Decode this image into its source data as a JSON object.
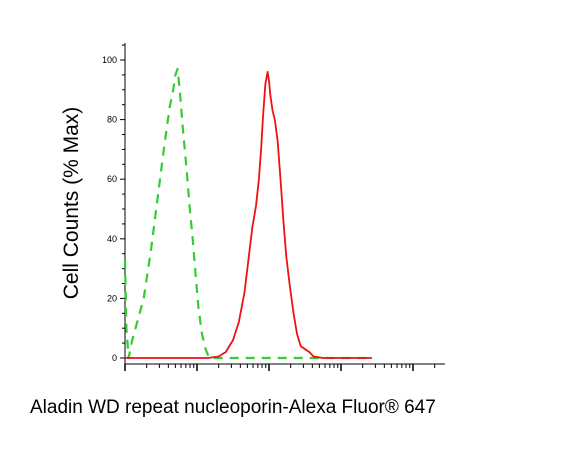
{
  "chart_data": {
    "type": "line",
    "xlabel": "Aladin WD repeat nucleoporin-Alexa Fluor® 647",
    "ylabel": "Cell Counts (% Max)",
    "ylim": [
      0,
      100
    ],
    "y_ticks": [
      "0",
      "20",
      "40",
      "60",
      "80",
      "100"
    ],
    "x_scale": "log",
    "x_tick_labels_shown": false,
    "grid": false,
    "legend": "none",
    "series": [
      {
        "color": "#33cc33",
        "style": "dashed",
        "points": [
          [
            0.0,
            33
          ],
          [
            0.02,
            10
          ],
          [
            0.05,
            0
          ],
          [
            0.1,
            6
          ],
          [
            0.17,
            12
          ],
          [
            0.26,
            20
          ],
          [
            0.36,
            36
          ],
          [
            0.46,
            55
          ],
          [
            0.55,
            72
          ],
          [
            0.62,
            84
          ],
          [
            0.67,
            90
          ],
          [
            0.7,
            95
          ],
          [
            0.73,
            97
          ],
          [
            0.76,
            90
          ],
          [
            0.8,
            78
          ],
          [
            0.86,
            62
          ],
          [
            0.9,
            50
          ],
          [
            0.94,
            40
          ],
          [
            0.98,
            28
          ],
          [
            1.02,
            17
          ],
          [
            1.07,
            8
          ],
          [
            1.12,
            3
          ],
          [
            1.17,
            0
          ],
          [
            1.4,
            0
          ],
          [
            1.9,
            0
          ],
          [
            2.4,
            0
          ],
          [
            2.9,
            0
          ],
          [
            3.43,
            0
          ]
        ]
      },
      {
        "color": "#ee1111",
        "style": "solid",
        "points": [
          [
            0.0,
            0
          ],
          [
            0.5,
            0
          ],
          [
            0.8,
            0
          ],
          [
            1.15,
            0
          ],
          [
            1.3,
            0.5
          ],
          [
            1.4,
            2
          ],
          [
            1.5,
            6
          ],
          [
            1.58,
            12
          ],
          [
            1.66,
            22
          ],
          [
            1.72,
            34
          ],
          [
            1.77,
            44
          ],
          [
            1.82,
            51
          ],
          [
            1.86,
            60
          ],
          [
            1.89,
            70
          ],
          [
            1.92,
            82
          ],
          [
            1.95,
            92
          ],
          [
            1.98,
            96
          ],
          [
            2.0,
            93
          ],
          [
            2.02,
            88
          ],
          [
            2.05,
            83
          ],
          [
            2.08,
            80
          ],
          [
            2.12,
            73
          ],
          [
            2.16,
            60
          ],
          [
            2.2,
            46
          ],
          [
            2.24,
            34
          ],
          [
            2.29,
            24
          ],
          [
            2.34,
            15
          ],
          [
            2.39,
            8
          ],
          [
            2.44,
            4
          ],
          [
            2.5,
            3
          ],
          [
            2.56,
            2
          ],
          [
            2.62,
            0.5
          ],
          [
            2.75,
            0
          ],
          [
            3.1,
            0
          ],
          [
            3.43,
            0
          ]
        ]
      }
    ]
  }
}
